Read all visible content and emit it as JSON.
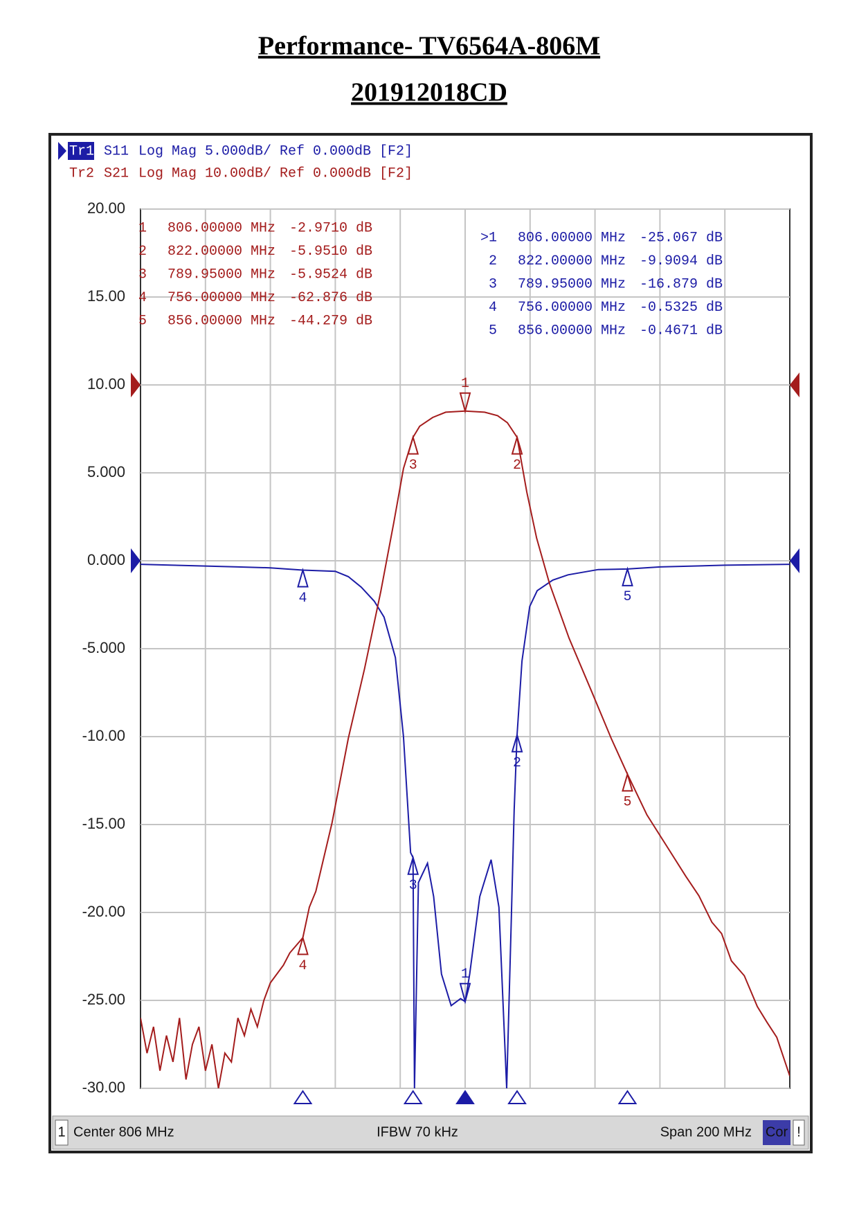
{
  "chart_data": {
    "type": "line",
    "title": "Performance- TV6564A-806M",
    "subtitle": "201912018CD",
    "xlim": [
      706,
      906
    ],
    "ylim": [
      -30,
      20
    ],
    "y2lim": [
      -80,
      20
    ],
    "grid": true,
    "yticks": [
      {
        "value": 20,
        "label": "20.00"
      },
      {
        "value": 15,
        "label": "15.00"
      },
      {
        "value": 10,
        "label": "10.00"
      },
      {
        "value": 5,
        "label": "5.000"
      },
      {
        "value": 0,
        "label": "0.000"
      },
      {
        "value": -5,
        "label": "-5.000"
      },
      {
        "value": -10,
        "label": "-10.00"
      },
      {
        "value": -15,
        "label": "-15.00"
      },
      {
        "value": -20,
        "label": "-20.00"
      },
      {
        "value": -25,
        "label": "-25.00"
      },
      {
        "value": -30,
        "label": "-30.00"
      }
    ],
    "series": [
      {
        "trace": "Tr1",
        "name": "S11",
        "format": "Log Mag 5.000dB/ Ref 0.000dB [F2]",
        "ref": 0,
        "color": "#1c1ca6",
        "axis": "y",
        "x": [
          706,
          716,
          726,
          736,
          746,
          756,
          766,
          770,
          774,
          778,
          781,
          784.5,
          787,
          789.2,
          789.95,
          790.4,
          791.6,
          794.4,
          796.3,
          798.7,
          801.7,
          804.6,
          806,
          807.4,
          810.5,
          814,
          816.4,
          818.8,
          820.2,
          821.1,
          822,
          823.5,
          825.9,
          828.2,
          833,
          837.7,
          847,
          856,
          866,
          886,
          906
        ],
        "values": [
          -0.2,
          -0.25,
          -0.3,
          -0.35,
          -0.4,
          -0.5325,
          -0.6,
          -0.9,
          -1.5,
          -2.3,
          -3.2,
          -5.5,
          -10,
          -16.6,
          -16.879,
          -30,
          -18.3,
          -17.2,
          -19.1,
          -23.5,
          -25.3,
          -24.9,
          -25.067,
          -23.5,
          -19.1,
          -17,
          -19.7,
          -30,
          -20.5,
          -14.2,
          -9.9094,
          -5.7,
          -2.6,
          -1.7,
          -1.1,
          -0.8,
          -0.5,
          -0.4671,
          -0.35,
          -0.25,
          -0.2
        ],
        "markers": [
          {
            "label": ">1",
            "freq": 806,
            "freq_label": "806.00000 MHz",
            "value": -25.067,
            "value_label": "-25.067 dB"
          },
          {
            "label": "2",
            "freq": 822,
            "freq_label": "822.00000 MHz",
            "value": -9.9094,
            "value_label": "-9.9094 dB"
          },
          {
            "label": "3",
            "freq": 789.95,
            "freq_label": "789.95000 MHz",
            "value": -16.879,
            "value_label": "-16.879 dB"
          },
          {
            "label": "4",
            "freq": 756,
            "freq_label": "756.00000 MHz",
            "value": -0.5325,
            "value_label": "-0.5325 dB"
          },
          {
            "label": "5",
            "freq": 856,
            "freq_label": "856.00000 MHz",
            "value": -0.4671,
            "value_label": "-0.4671 dB"
          }
        ]
      },
      {
        "trace": "Tr2",
        "name": "S21",
        "format": "Log Mag 10.00dB/ Ref 0.000dB [F2]",
        "ref": 0,
        "color": "#a41c1c",
        "axis": "y2",
        "x": [
          706,
          708,
          710,
          712,
          714,
          716,
          718,
          720,
          722,
          724,
          726,
          728,
          730,
          732,
          734,
          736,
          738,
          740,
          742,
          744,
          746,
          750,
          752,
          756,
          758,
          760,
          765,
          770,
          775,
          780,
          784,
          787,
          789.95,
          792,
          796,
          800,
          806,
          812,
          816,
          819,
          822,
          825,
          828,
          832,
          838,
          845,
          851,
          856,
          862,
          868,
          874,
          878,
          882,
          885,
          888,
          892,
          896,
          899,
          902,
          906
        ],
        "values": [
          -72,
          -76,
          -73,
          -78,
          -74,
          -77,
          -72,
          -79,
          -75,
          -73,
          -78,
          -75,
          -80,
          -76,
          -77,
          -72,
          -74,
          -71,
          -73,
          -70,
          -68,
          -66,
          -64.6,
          -62.876,
          -59.4,
          -57.6,
          -49.8,
          -40.2,
          -32.3,
          -23.5,
          -15.7,
          -9.5,
          -5.9524,
          -4.7,
          -3.7,
          -3.1,
          -2.971,
          -3.1,
          -3.5,
          -4.3,
          -5.951,
          -12.2,
          -17.4,
          -22.6,
          -28.8,
          -34.9,
          -40.2,
          -44.279,
          -48.9,
          -52.4,
          -55.9,
          -58.1,
          -61.1,
          -62.4,
          -65.5,
          -67.2,
          -70.7,
          -72.5,
          -74.2,
          -78.6
        ],
        "markers": [
          {
            "label": "1",
            "freq": 806,
            "freq_label": "806.00000 MHz",
            "value": -2.971,
            "value_label": "-2.9710 dB"
          },
          {
            "label": "2",
            "freq": 822,
            "freq_label": "822.00000 MHz",
            "value": -5.951,
            "value_label": "-5.9510 dB"
          },
          {
            "label": "3",
            "freq": 789.95,
            "freq_label": "789.95000 MHz",
            "value": -5.9524,
            "value_label": "-5.9524 dB"
          },
          {
            "label": "4",
            "freq": 756,
            "freq_label": "756.00000 MHz",
            "value": -62.876,
            "value_label": "-62.876 dB"
          },
          {
            "label": "5",
            "freq": 856,
            "freq_label": "856.00000 MHz",
            "value": -44.279,
            "value_label": "-44.279 dB"
          }
        ]
      }
    ],
    "status": {
      "channel": "1",
      "center": "Center 806 MHz",
      "ifbw": "IFBW 70 kHz",
      "span": "Span 200 MHz",
      "correction": "Cor",
      "alert": "!"
    }
  }
}
